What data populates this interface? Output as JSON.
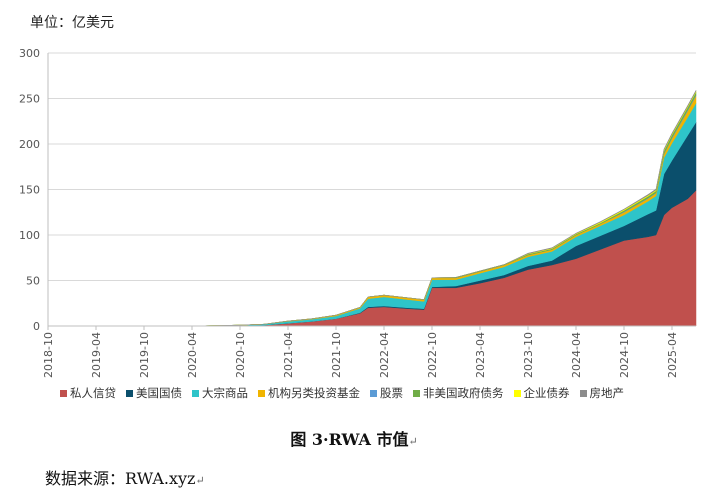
{
  "unit_label": "单位：亿美元",
  "caption": {
    "text": "图 3·RWA 市值",
    "mark": "↵"
  },
  "source": {
    "text": "数据来源：RWA.xyz",
    "mark": "↵"
  },
  "chart_data": {
    "type": "area",
    "stacked": true,
    "ylim": [
      0,
      300
    ],
    "yticks": [
      0,
      50,
      100,
      150,
      200,
      250,
      300
    ],
    "xticks": [
      "2018-10",
      "2019-04",
      "2019-10",
      "2020-04",
      "2020-10",
      "2021-04",
      "2021-10",
      "2022-04",
      "2022-10",
      "2023-04",
      "2023-10",
      "2024-04",
      "2024-10",
      "2025-04"
    ],
    "grid": true,
    "legend_position": "bottom",
    "x": [
      "2018-10",
      "2019-04",
      "2019-10",
      "2020-04",
      "2020-10",
      "2021-01",
      "2021-04",
      "2021-07",
      "2021-10",
      "2022-01",
      "2022-02",
      "2022-04",
      "2022-07",
      "2022-09",
      "2022-10",
      "2023-01",
      "2023-04",
      "2023-07",
      "2023-10",
      "2024-01",
      "2024-04",
      "2024-07",
      "2024-10",
      "2025-01",
      "2025-02",
      "2025-03",
      "2025-04",
      "2025-06",
      "2025-07"
    ],
    "series": [
      {
        "name": "私人信贷",
        "color": "#c0504d",
        "values": [
          0,
          0,
          0,
          0,
          0.5,
          1,
          3,
          5,
          8,
          14,
          20,
          21,
          19,
          18,
          42,
          42,
          47,
          53,
          62,
          67,
          74,
          84,
          94,
          98,
          100,
          122,
          130,
          140,
          149
        ]
      },
      {
        "name": "美国国债",
        "color": "#0b4f6c",
        "values": [
          0,
          0,
          0,
          0,
          0,
          0,
          0,
          0,
          0,
          0.5,
          1,
          1,
          1,
          1,
          1,
          2,
          3,
          3,
          4,
          5,
          14,
          15,
          16,
          25,
          27,
          45,
          52,
          70,
          75
        ]
      },
      {
        "name": "大宗商品",
        "color": "#2ec4c9",
        "values": [
          0,
          0,
          0,
          0,
          0.5,
          1,
          2,
          2.5,
          3,
          5,
          9,
          10,
          9,
          8,
          8,
          7,
          8,
          9,
          10,
          10,
          10,
          11,
          12,
          14,
          16,
          18,
          19,
          20,
          21
        ]
      },
      {
        "name": "机构另类投资基金",
        "color": "#f0b400",
        "values": [
          0,
          0,
          0,
          0,
          0,
          0,
          0.5,
          0.5,
          1,
          1,
          2,
          2,
          2,
          2,
          2,
          2,
          2,
          2,
          2,
          2,
          2,
          2,
          3,
          3,
          3,
          4,
          5,
          7,
          8
        ]
      },
      {
        "name": "股票",
        "color": "#5b9bd5",
        "values": [
          0,
          0,
          0,
          0,
          0,
          0,
          0,
          0,
          0,
          0,
          0,
          0,
          0,
          0,
          0,
          0,
          0,
          0,
          0,
          0,
          0,
          0,
          0.5,
          0.5,
          0.5,
          0.5,
          1,
          1,
          1
        ]
      },
      {
        "name": "非美国政府债务",
        "color": "#70ad47",
        "values": [
          0,
          0,
          0,
          0,
          0,
          0,
          0,
          0,
          0,
          0,
          0,
          0,
          0,
          0,
          0,
          0.5,
          0.5,
          0.5,
          1,
          1,
          1,
          1,
          1.5,
          2,
          2,
          3,
          3,
          3,
          3
        ]
      },
      {
        "name": "企业债券",
        "color": "#ffff00",
        "values": [
          0,
          0,
          0,
          0,
          0,
          0,
          0,
          0,
          0,
          0,
          0,
          0,
          0,
          0,
          0,
          0,
          0,
          0,
          0.5,
          0.5,
          0.5,
          1,
          1,
          1,
          1,
          1,
          1,
          1,
          1
        ]
      },
      {
        "name": "房地产",
        "color": "#8c8c8c",
        "values": [
          0,
          0,
          0,
          0,
          0,
          0,
          0,
          0,
          0,
          0,
          0,
          0,
          0,
          0,
          0,
          0,
          0,
          0,
          0.5,
          0.5,
          0.5,
          0.5,
          0.5,
          1,
          1,
          1,
          1,
          1,
          1
        ]
      }
    ]
  }
}
